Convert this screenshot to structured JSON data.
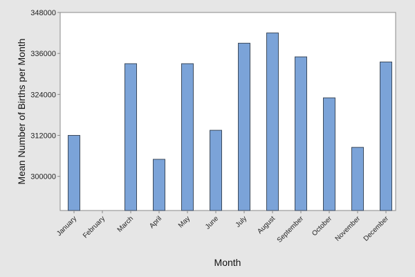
{
  "chart_data": {
    "type": "bar",
    "title": "",
    "xlabel": "Month",
    "ylabel": "Mean Number of Births per Month",
    "categories": [
      "January",
      "February",
      "March",
      "April",
      "May",
      "June",
      "July",
      "August",
      "September",
      "October",
      "November",
      "December"
    ],
    "values": [
      312000,
      289000,
      333000,
      305000,
      333000,
      313500,
      339000,
      342000,
      335000,
      323000,
      308500,
      333500
    ],
    "yticks": [
      300000,
      312000,
      324000,
      336000,
      348000
    ],
    "ylim": [
      290000,
      348000
    ],
    "grid": false,
    "legend": "none",
    "colors": {
      "bar_fill": "#7ba3d8",
      "bar_stroke": "#3c4a5c",
      "plot_bg": "#ffffff",
      "frame_bg": "#e6e6e6",
      "axis": "#888888"
    }
  }
}
